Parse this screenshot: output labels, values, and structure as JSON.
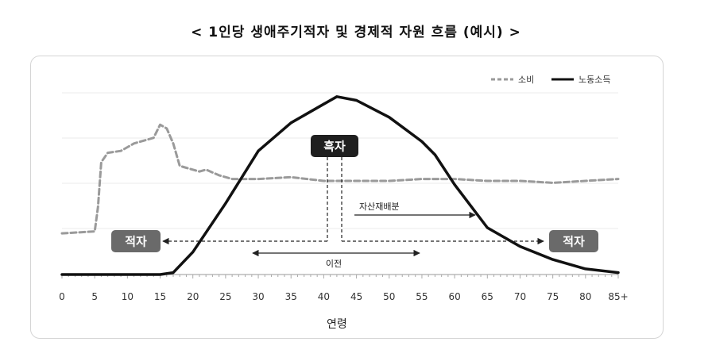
{
  "title": "< 1인당 생애주기적자 및 경제적 자원 흐름 (예시) >",
  "chart_data": {
    "type": "line",
    "title": "< 1인당 생애주기적자 및 경제적 자원 흐름 (예시) >",
    "xlabel": "연령",
    "ylabel": "",
    "x_ticks": [
      "0",
      "5",
      "10",
      "15",
      "20",
      "25",
      "30",
      "35",
      "40",
      "45",
      "50",
      "55",
      "60",
      "65",
      "70",
      "75",
      "80",
      "85+"
    ],
    "xlim": [
      0,
      85
    ],
    "grid": true,
    "legend_position": "top-right",
    "series": [
      {
        "name": "소비",
        "style": "dashed",
        "color": "#9a9a9a",
        "points": [
          [
            0,
            22
          ],
          [
            5,
            23
          ],
          [
            5.5,
            36
          ],
          [
            6,
            60
          ],
          [
            7,
            65
          ],
          [
            9,
            66
          ],
          [
            10,
            68
          ],
          [
            11,
            70
          ],
          [
            13,
            72
          ],
          [
            14,
            73
          ],
          [
            15,
            80
          ],
          [
            16,
            78
          ],
          [
            17,
            70
          ],
          [
            18,
            58
          ],
          [
            19,
            57
          ],
          [
            21,
            55
          ],
          [
            22,
            56
          ],
          [
            24,
            53
          ],
          [
            26,
            51
          ],
          [
            30,
            51
          ],
          [
            35,
            52
          ],
          [
            40,
            50
          ],
          [
            45,
            50
          ],
          [
            50,
            50
          ],
          [
            55,
            51
          ],
          [
            60,
            51
          ],
          [
            65,
            50
          ],
          [
            70,
            50
          ],
          [
            75,
            49
          ],
          [
            80,
            50
          ],
          [
            85,
            51
          ]
        ]
      },
      {
        "name": "노동소득",
        "style": "solid",
        "color": "#111111",
        "points": [
          [
            0,
            0
          ],
          [
            5,
            0
          ],
          [
            10,
            0
          ],
          [
            15,
            0
          ],
          [
            17,
            1
          ],
          [
            20,
            12
          ],
          [
            25,
            38
          ],
          [
            30,
            66
          ],
          [
            35,
            81
          ],
          [
            40,
            91
          ],
          [
            42,
            95
          ],
          [
            45,
            93
          ],
          [
            50,
            84
          ],
          [
            55,
            71
          ],
          [
            57,
            64
          ],
          [
            60,
            48
          ],
          [
            65,
            25
          ],
          [
            70,
            15
          ],
          [
            75,
            8
          ],
          [
            80,
            3
          ],
          [
            85,
            1
          ]
        ]
      }
    ],
    "annotations": {
      "surplus": "흑자",
      "deficit_left": "적자",
      "deficit_right": "적자",
      "asset_reallocation": "자산재배분",
      "transfer": "이전"
    }
  },
  "legend": {
    "consumption": "소비",
    "labor_income": "노동소득"
  },
  "colors": {
    "consumption": "#9a9a9a",
    "labor_income": "#111111",
    "badge_dark": "#1f1f1f",
    "badge_gray": "#6a6a6a"
  }
}
